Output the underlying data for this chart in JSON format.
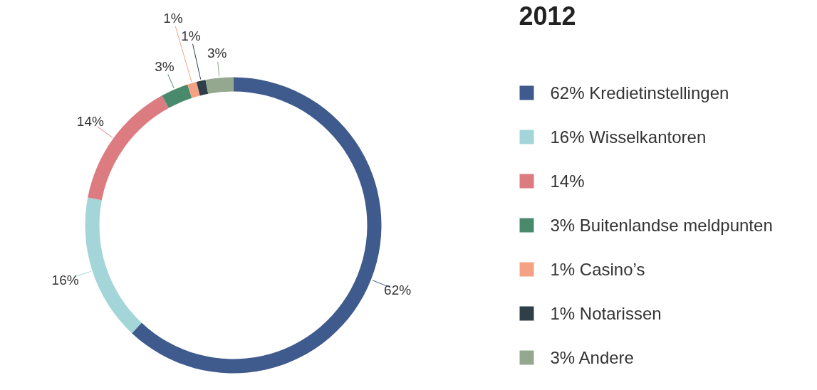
{
  "chart_data": {
    "type": "donut",
    "title": "2012",
    "categories": [
      "62% Kredietinstellingen",
      "16% Wisselkantoren",
      "14%",
      "3% Buitenlandse meldpunten",
      "1% Casino’s",
      "1% Notarissen",
      "3% Andere"
    ],
    "values": [
      62,
      16,
      14,
      3,
      1,
      1,
      3
    ],
    "value_labels": [
      "62%",
      "16%",
      "14%",
      "3%",
      "1%",
      "1%",
      "3%"
    ],
    "colors": [
      "#3f5a8c",
      "#a3d5d9",
      "#dc7b80",
      "#4a8a6c",
      "#f4a283",
      "#2e3f4a",
      "#94a890"
    ],
    "legend": "right"
  }
}
